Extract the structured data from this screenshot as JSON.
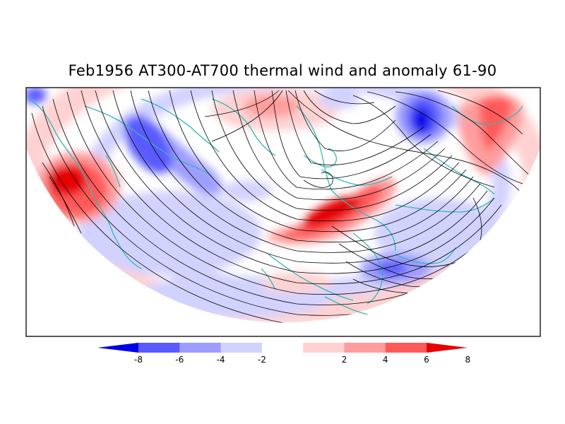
{
  "title": "Feb1956 AT300-AT700 thermal wind and anomaly 61-90",
  "colorbar": {
    "tick_labels": [
      "-8",
      "-6",
      "-4",
      "-2",
      "2",
      "4",
      "6",
      "8"
    ],
    "colors": [
      "#0000e6",
      "#5a5aff",
      "#9d9dff",
      "#d2d2ff",
      "#ffffff",
      "#ffd2d2",
      "#ff9d9d",
      "#ff5a5a",
      "#e60000"
    ]
  },
  "colors": {
    "streamlines": "#000000",
    "coastlines": "#33b8b8",
    "frame": "#000000"
  }
}
